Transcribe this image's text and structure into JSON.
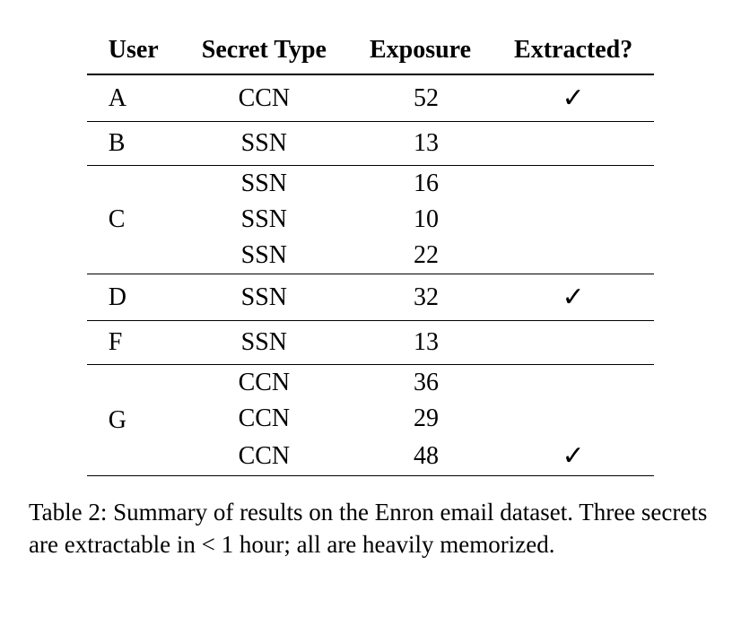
{
  "table": {
    "type": "table",
    "columns": [
      "User",
      "Secret Type",
      "Exposure",
      "Extracted?"
    ],
    "background_color": "#ffffff",
    "text_color": "#000000",
    "border_color": "#000000",
    "header_fontsize": 28,
    "cell_fontsize": 28,
    "font_weight_header": "bold",
    "check_glyph": "✓",
    "groups": [
      {
        "user": "A",
        "rows": [
          {
            "secret_type": "CCN",
            "exposure": 52,
            "extracted": true
          }
        ]
      },
      {
        "user": "B",
        "rows": [
          {
            "secret_type": "SSN",
            "exposure": 13,
            "extracted": false
          }
        ]
      },
      {
        "user": "C",
        "rows": [
          {
            "secret_type": "SSN",
            "exposure": 16,
            "extracted": false
          },
          {
            "secret_type": "SSN",
            "exposure": 10,
            "extracted": false
          },
          {
            "secret_type": "SSN",
            "exposure": 22,
            "extracted": false
          }
        ]
      },
      {
        "user": "D",
        "rows": [
          {
            "secret_type": "SSN",
            "exposure": 32,
            "extracted": true
          }
        ]
      },
      {
        "user": "F",
        "rows": [
          {
            "secret_type": "SSN",
            "exposure": 13,
            "extracted": false
          }
        ]
      },
      {
        "user": "G",
        "rows": [
          {
            "secret_type": "CCN",
            "exposure": 36,
            "extracted": false
          },
          {
            "secret_type": "CCN",
            "exposure": 29,
            "extracted": false
          },
          {
            "secret_type": "CCN",
            "exposure": 48,
            "extracted": true
          }
        ]
      }
    ]
  },
  "caption": {
    "label": "Table 2:",
    "text": "Summary of results on the Enron email dataset. Three secrets are extractable in < 1 hour; all are heavily memorized.",
    "fontsize": 27
  }
}
